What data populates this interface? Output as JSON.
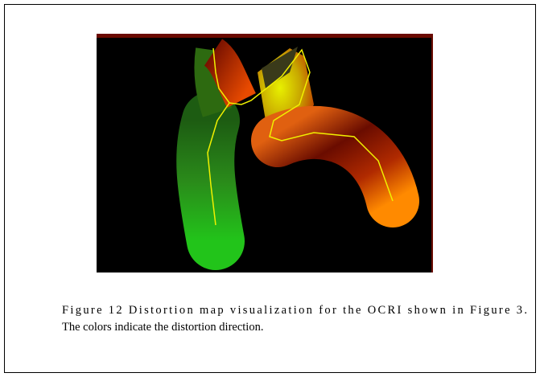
{
  "figure": {
    "caption": {
      "lines": [
        "Figure 12 Distortion map visualization for the OCRI shown in Figure 3.",
        "The colors indicate the distortion direction."
      ]
    }
  }
}
